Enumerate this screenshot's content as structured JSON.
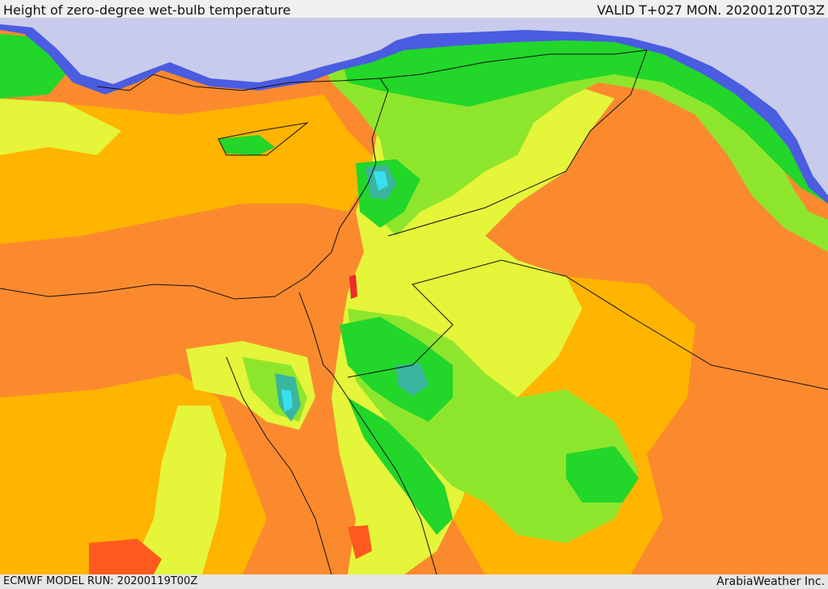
{
  "header": {
    "title": "Height of zero-degree wet-bulb temperature",
    "valid": "VALID T+027 MON. 20200120T03Z"
  },
  "footer": {
    "model_run": "ECMWF MODEL RUN: 20200119T00Z",
    "provider": "ArabiaWeather Inc."
  },
  "map": {
    "region": "Eastern Mediterranean and Middle East",
    "colors": {
      "sea_ice_cold": "#c8cbeb",
      "blue": "#4a5ce0",
      "cyan": "#36e0f0",
      "teal": "#3ab59e",
      "green": "#22d62a",
      "light_green": "#8ee62c",
      "yellow_green": "#e4f53a",
      "orange_yellow": "#ffb400",
      "orange": "#fb8a2e",
      "red_orange": "#ff5a1e",
      "red": "#ee2a2a"
    }
  }
}
